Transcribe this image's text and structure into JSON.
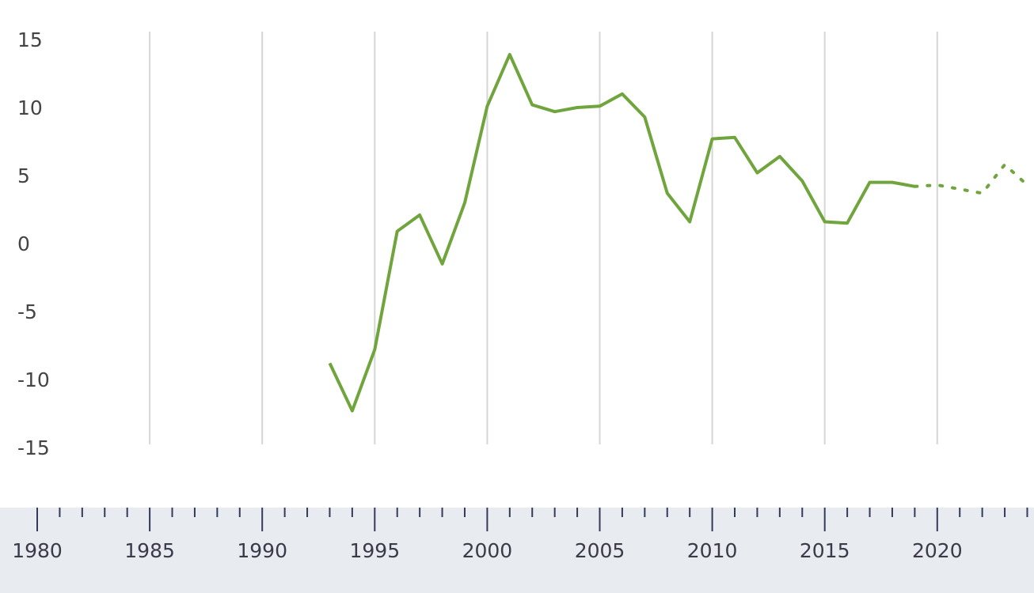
{
  "chart_data": {
    "type": "line",
    "title": "",
    "xlabel": "",
    "ylabel": "",
    "xlim": [
      1979.5,
      2024.3
    ],
    "ylim": [
      -15,
      15
    ],
    "y_ticks": [
      15,
      10,
      5,
      0,
      -5,
      -10,
      -15
    ],
    "x_ticks": [
      1980,
      1985,
      1990,
      1995,
      2000,
      2005,
      2010,
      2015,
      2020
    ],
    "grid": "vertical",
    "legend": "none",
    "colors": {
      "line": "#6fa53c",
      "band": "#e8ebef",
      "grid": "#d6d6d6",
      "tick": "#333a5a"
    },
    "series": [
      {
        "style": "solid",
        "x": [
          1993,
          1994,
          1995,
          1996,
          1997,
          1998,
          1999,
          2000,
          2001,
          2002,
          2003,
          2004,
          2005,
          2006,
          2007,
          2008,
          2009,
          2010,
          2011,
          2012,
          2013,
          2014,
          2015,
          2016,
          2017,
          2018,
          2019
        ],
        "y": [
          -8.8,
          -12.3,
          -7.8,
          0.9,
          2.1,
          -1.5,
          3.0,
          10.1,
          13.9,
          10.2,
          9.7,
          10.0,
          10.1,
          11.0,
          9.3,
          3.7,
          1.6,
          7.7,
          7.8,
          5.2,
          6.4,
          4.6,
          1.6,
          1.5,
          4.5,
          4.5,
          4.2
        ]
      },
      {
        "style": "dotted",
        "x": [
          2019,
          2020,
          2021,
          2022,
          2023,
          2024
        ],
        "y": [
          4.2,
          4.3,
          4.0,
          3.7,
          5.8,
          4.3
        ]
      }
    ]
  }
}
